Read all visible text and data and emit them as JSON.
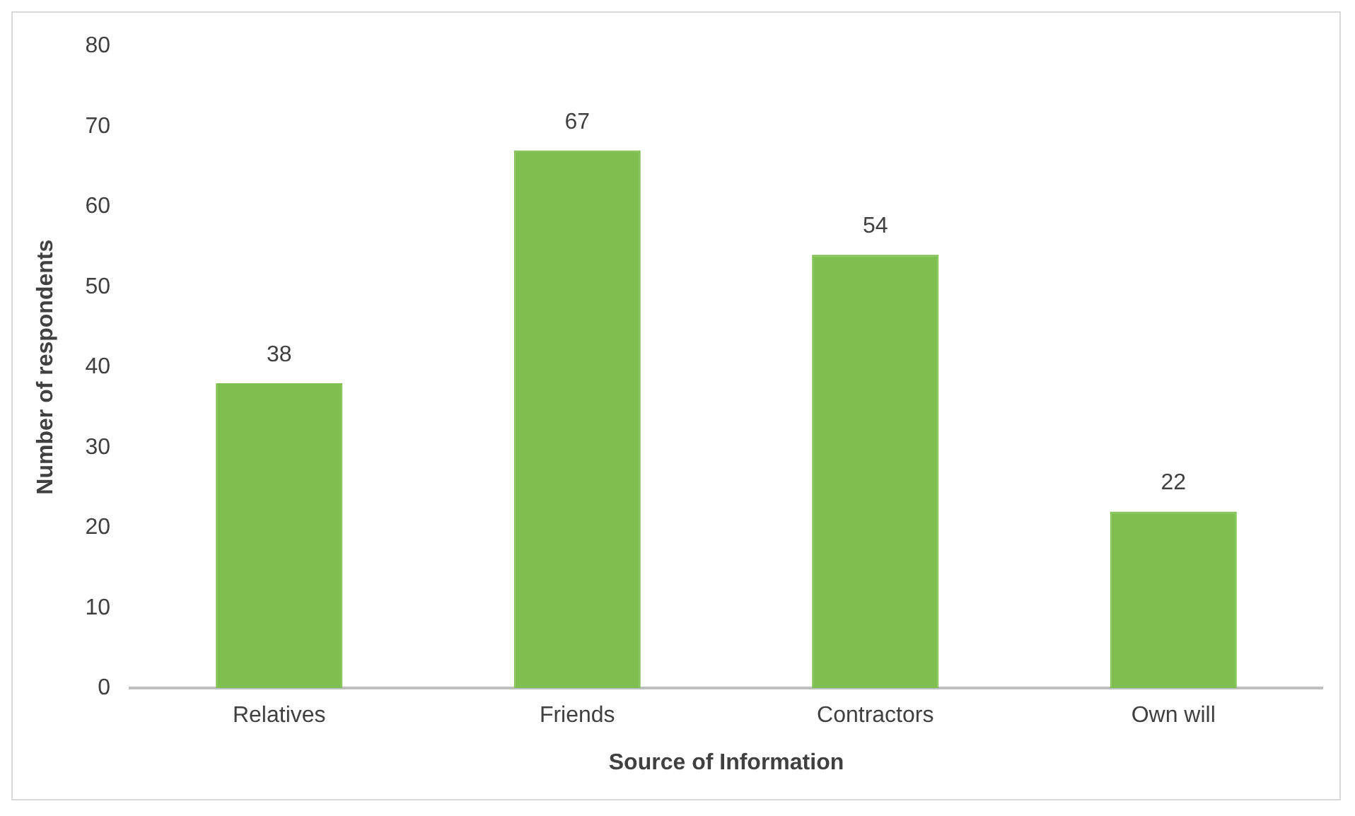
{
  "chart_data": {
    "type": "bar",
    "xlabel": "Source of Information",
    "ylabel": "Number of respondents",
    "categories": [
      "Relatives",
      "Friends",
      "Contractors",
      "Own will"
    ],
    "values": [
      38,
      67,
      54,
      22
    ],
    "color": "#7ebf4f",
    "ylim": [
      0,
      80
    ],
    "yticks": [
      0,
      10,
      20,
      30,
      40,
      50,
      60,
      70,
      80
    ],
    "grid": false,
    "data_labels": true
  }
}
